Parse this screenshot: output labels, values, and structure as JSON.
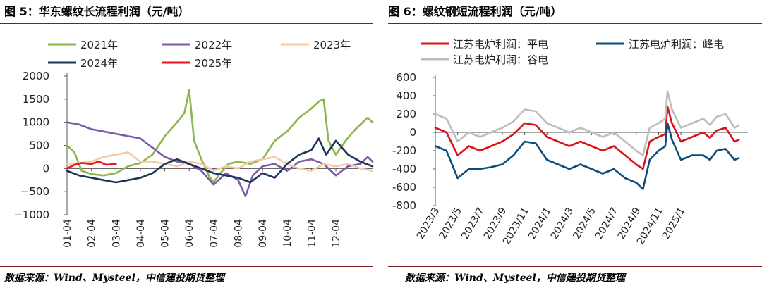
{
  "left": {
    "title": "图 5：华东螺纹长流程利润（元/吨）",
    "source": "数据来源：Wind、Mysteel，中信建投期货整理"
  },
  "right": {
    "title": "图 6：螺纹钢短流程利润（元/吨）",
    "source": "数据来源：Wind、Mysteel，中信建投期货整理"
  },
  "colors": {
    "s2021": "#8db54a",
    "s2022": "#7b5ba6",
    "s2023": "#f6c9a5",
    "s2024": "#1c3557",
    "s2025": "#e8141a",
    "flat": "#d9131a",
    "peak": "#0e4c7a",
    "valley": "#bdbdbd"
  },
  "chart_data": [
    {
      "type": "line",
      "title": "华东螺纹长流程利润（元/吨）",
      "x_ticks": [
        "01-04",
        "02-04",
        "03-04",
        "04-04",
        "05-04",
        "06-04",
        "07-04",
        "08-04",
        "09-04",
        "10-04",
        "11-04",
        "12-04"
      ],
      "ylim": [
        -1000,
        2000
      ],
      "y_ticks": [
        "2000",
        "1500",
        "1000",
        "500",
        "0",
        "−500",
        "−1000"
      ],
      "y_tick_values": [
        2000,
        1500,
        1000,
        500,
        0,
        -500,
        -1000
      ],
      "legend_position": "top",
      "series": [
        {
          "name": "2021年",
          "color_key": "s2021",
          "points": [
            [
              0,
              500
            ],
            [
              0.3,
              350
            ],
            [
              0.6,
              -50
            ],
            [
              1,
              -120
            ],
            [
              1.5,
              -150
            ],
            [
              2,
              -100
            ],
            [
              2.5,
              50
            ],
            [
              3,
              120
            ],
            [
              3.5,
              300
            ],
            [
              4,
              700
            ],
            [
              4.5,
              1000
            ],
            [
              4.8,
              1200
            ],
            [
              5,
              1700
            ],
            [
              5.2,
              600
            ],
            [
              5.5,
              200
            ],
            [
              5.8,
              -150
            ],
            [
              6,
              -300
            ],
            [
              6.2,
              -150
            ],
            [
              6.6,
              100
            ],
            [
              7,
              150
            ],
            [
              7.5,
              100
            ],
            [
              8,
              200
            ],
            [
              8.5,
              600
            ],
            [
              9,
              800
            ],
            [
              9.5,
              1100
            ],
            [
              10,
              1300
            ],
            [
              10.3,
              1450
            ],
            [
              10.5,
              1500
            ],
            [
              10.7,
              600
            ],
            [
              11,
              300
            ],
            [
              11.4,
              600
            ],
            [
              11.8,
              850
            ],
            [
              12,
              950
            ],
            [
              12.3,
              1100
            ],
            [
              12.5,
              1000
            ]
          ]
        },
        {
          "name": "2022年",
          "color_key": "s2022",
          "points": [
            [
              0,
              1000
            ],
            [
              0.5,
              950
            ],
            [
              1,
              850
            ],
            [
              1.5,
              800
            ],
            [
              2,
              750
            ],
            [
              2.5,
              700
            ],
            [
              3,
              650
            ],
            [
              3.5,
              450
            ],
            [
              4,
              250
            ],
            [
              4.5,
              150
            ],
            [
              5,
              100
            ],
            [
              5.5,
              -50
            ],
            [
              6,
              -350
            ],
            [
              6.5,
              -100
            ],
            [
              7,
              -250
            ],
            [
              7.3,
              -600
            ],
            [
              7.6,
              -150
            ],
            [
              8,
              50
            ],
            [
              8.5,
              100
            ],
            [
              9,
              -50
            ],
            [
              9.5,
              150
            ],
            [
              10,
              200
            ],
            [
              10.5,
              100
            ],
            [
              11,
              -150
            ],
            [
              11.5,
              50
            ],
            [
              12,
              100
            ],
            [
              12.3,
              250
            ],
            [
              12.5,
              150
            ]
          ]
        },
        {
          "name": "2023年",
          "color_key": "s2023",
          "points": [
            [
              0,
              100
            ],
            [
              0.5,
              120
            ],
            [
              1,
              150
            ],
            [
              1.5,
              250
            ],
            [
              2,
              300
            ],
            [
              2.5,
              350
            ],
            [
              3,
              150
            ],
            [
              3.5,
              150
            ],
            [
              4,
              100
            ],
            [
              4.5,
              50
            ],
            [
              5,
              150
            ],
            [
              5.5,
              100
            ],
            [
              6,
              -50
            ],
            [
              6.5,
              50
            ],
            [
              7,
              0
            ],
            [
              7.5,
              150
            ],
            [
              8,
              200
            ],
            [
              8.5,
              250
            ],
            [
              9,
              100
            ],
            [
              9.5,
              0
            ],
            [
              10,
              -50
            ],
            [
              10.5,
              100
            ],
            [
              11,
              50
            ],
            [
              11.5,
              100
            ],
            [
              12,
              0
            ],
            [
              12.5,
              -50
            ]
          ]
        },
        {
          "name": "2024年",
          "color_key": "s2024",
          "points": [
            [
              0,
              -50
            ],
            [
              0.5,
              -150
            ],
            [
              1,
              -200
            ],
            [
              1.5,
              -250
            ],
            [
              2,
              -300
            ],
            [
              2.5,
              -250
            ],
            [
              3,
              -200
            ],
            [
              3.5,
              -100
            ],
            [
              4,
              100
            ],
            [
              4.5,
              200
            ],
            [
              5,
              100
            ],
            [
              5.5,
              0
            ],
            [
              6,
              -100
            ],
            [
              6.5,
              -150
            ],
            [
              7,
              -200
            ],
            [
              7.5,
              -300
            ],
            [
              8,
              -100
            ],
            [
              8.5,
              -200
            ],
            [
              9,
              100
            ],
            [
              9.5,
              300
            ],
            [
              10,
              400
            ],
            [
              10.3,
              650
            ],
            [
              10.6,
              300
            ],
            [
              11,
              600
            ],
            [
              11.5,
              300
            ],
            [
              12,
              150
            ],
            [
              12.5,
              50
            ]
          ]
        },
        {
          "name": "2025年",
          "color_key": "s2025",
          "points": [
            [
              0,
              0
            ],
            [
              0.3,
              80
            ],
            [
              0.6,
              120
            ],
            [
              1,
              100
            ],
            [
              1.3,
              150
            ],
            [
              1.6,
              80
            ],
            [
              2,
              100
            ]
          ]
        }
      ]
    },
    {
      "type": "line",
      "title": "螺纹钢短流程利润（元/吨）",
      "x_ticks": [
        "2023/3",
        "2023/5",
        "2023/7",
        "2023/9",
        "2023/11",
        "2024/1",
        "2024/3",
        "2024/5",
        "2024/7",
        "2024/9",
        "2024/11",
        "2025/1"
      ],
      "ylim": [
        -800,
        600
      ],
      "y_ticks": [
        "600",
        "400",
        "200",
        "0",
        "-200",
        "-400",
        "-600",
        "-800"
      ],
      "y_tick_values": [
        600,
        400,
        200,
        0,
        -200,
        -400,
        -600,
        -800
      ],
      "legend_position": "top",
      "series": [
        {
          "name": "江苏电炉利润：平电",
          "color_key": "flat",
          "points": [
            [
              0,
              50
            ],
            [
              0.5,
              0
            ],
            [
              1,
              -250
            ],
            [
              1.5,
              -150
            ],
            [
              2,
              -200
            ],
            [
              2.5,
              -150
            ],
            [
              3,
              -100
            ],
            [
              3.5,
              -20
            ],
            [
              4,
              100
            ],
            [
              4.5,
              80
            ],
            [
              5,
              -50
            ],
            [
              5.5,
              -100
            ],
            [
              6,
              -150
            ],
            [
              6.5,
              -100
            ],
            [
              7,
              -150
            ],
            [
              7.5,
              -200
            ],
            [
              8,
              -150
            ],
            [
              8.5,
              -250
            ],
            [
              9,
              -350
            ],
            [
              9.3,
              -400
            ],
            [
              9.6,
              -100
            ],
            [
              10,
              -50
            ],
            [
              10.3,
              -20
            ],
            [
              10.4,
              280
            ],
            [
              10.6,
              100
            ],
            [
              11,
              -100
            ],
            [
              11.5,
              -50
            ],
            [
              12,
              0
            ],
            [
              12.3,
              -60
            ],
            [
              12.6,
              20
            ],
            [
              13,
              50
            ],
            [
              13.4,
              -100
            ],
            [
              13.6,
              -80
            ]
          ]
        },
        {
          "name": "江苏电炉利润：峰电",
          "color_key": "peak",
          "points": [
            [
              0,
              -150
            ],
            [
              0.5,
              -200
            ],
            [
              1,
              -500
            ],
            [
              1.5,
              -400
            ],
            [
              2,
              -400
            ],
            [
              2.5,
              -380
            ],
            [
              3,
              -350
            ],
            [
              3.5,
              -250
            ],
            [
              4,
              -100
            ],
            [
              4.5,
              -120
            ],
            [
              5,
              -300
            ],
            [
              5.5,
              -350
            ],
            [
              6,
              -400
            ],
            [
              6.5,
              -350
            ],
            [
              7,
              -400
            ],
            [
              7.5,
              -450
            ],
            [
              8,
              -400
            ],
            [
              8.5,
              -500
            ],
            [
              9,
              -550
            ],
            [
              9.3,
              -620
            ],
            [
              9.6,
              -300
            ],
            [
              10,
              -200
            ],
            [
              10.3,
              -150
            ],
            [
              10.4,
              100
            ],
            [
              10.6,
              -80
            ],
            [
              11,
              -300
            ],
            [
              11.5,
              -250
            ],
            [
              12,
              -250
            ],
            [
              12.3,
              -300
            ],
            [
              12.6,
              -200
            ],
            [
              13,
              -180
            ],
            [
              13.4,
              -300
            ],
            [
              13.6,
              -280
            ]
          ]
        },
        {
          "name": "江苏电炉利润：谷电",
          "color_key": "valley",
          "points": [
            [
              0,
              200
            ],
            [
              0.5,
              150
            ],
            [
              1,
              -100
            ],
            [
              1.5,
              0
            ],
            [
              2,
              -50
            ],
            [
              2.5,
              0
            ],
            [
              3,
              50
            ],
            [
              3.5,
              120
            ],
            [
              4,
              250
            ],
            [
              4.5,
              230
            ],
            [
              5,
              100
            ],
            [
              5.5,
              50
            ],
            [
              6,
              0
            ],
            [
              6.5,
              50
            ],
            [
              7,
              0
            ],
            [
              7.5,
              -50
            ],
            [
              8,
              0
            ],
            [
              8.5,
              -100
            ],
            [
              9,
              -200
            ],
            [
              9.3,
              -250
            ],
            [
              9.6,
              50
            ],
            [
              10,
              100
            ],
            [
              10.3,
              150
            ],
            [
              10.4,
              450
            ],
            [
              10.6,
              250
            ],
            [
              11,
              50
            ],
            [
              11.5,
              100
            ],
            [
              12,
              150
            ],
            [
              12.3,
              80
            ],
            [
              12.6,
              170
            ],
            [
              13,
              200
            ],
            [
              13.4,
              50
            ],
            [
              13.6,
              80
            ]
          ]
        }
      ]
    }
  ]
}
